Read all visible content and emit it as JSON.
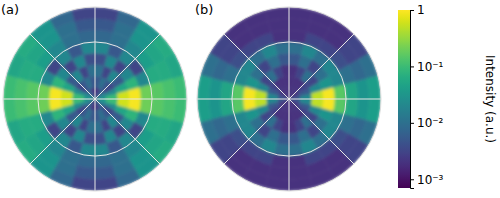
{
  "chart_data": {
    "type": "polar_heatmap",
    "log": true,
    "grid": true,
    "colorbar": {
      "label": "Intensity (a.u.)",
      "range": [
        0.0007,
        1
      ],
      "ticks": [
        {
          "value": 0.001,
          "label": "10⁻³"
        },
        {
          "value": 0.01,
          "label": "10⁻²"
        },
        {
          "value": 0.1,
          "label": "10⁻¹"
        },
        1
      ]
    },
    "panels": [
      {
        "title": "(a)",
        "r_edges": [
          0,
          0.125,
          0.25,
          0.375,
          0.5,
          0.625,
          0.75,
          0.875,
          1
        ],
        "theta_edges": [
          0,
          15,
          30,
          45,
          60,
          75,
          90,
          105,
          120,
          135,
          150,
          165,
          180,
          195,
          210,
          225,
          240,
          255,
          270,
          285,
          300,
          315,
          330,
          345,
          360
        ],
        "cells": [
          [
            0.03,
            0.02,
            0.01,
            0.005,
            0.003,
            0.002,
            0.002,
            0.003,
            0.005,
            0.01,
            0.02,
            0.03,
            0.03,
            0.02,
            0.01,
            0.005,
            0.003,
            0.002,
            0.002,
            0.003,
            0.005,
            0.01,
            0.02,
            0.03
          ],
          [
            0.1,
            0.02,
            0.003,
            0.005,
            0.01,
            0.005,
            0.005,
            0.01,
            0.005,
            0.003,
            0.02,
            0.1,
            0.1,
            0.02,
            0.003,
            0.005,
            0.01,
            0.005,
            0.005,
            0.01,
            0.005,
            0.003,
            0.02,
            0.1
          ],
          [
            0.6,
            0.05,
            0.005,
            0.02,
            0.003,
            0.01,
            0.01,
            0.003,
            0.02,
            0.005,
            0.05,
            0.6,
            0.6,
            0.05,
            0.005,
            0.02,
            0.003,
            0.01,
            0.01,
            0.003,
            0.02,
            0.005,
            0.05,
            0.6
          ],
          [
            0.9,
            0.08,
            0.02,
            0.003,
            0.02,
            0.004,
            0.004,
            0.02,
            0.003,
            0.02,
            0.08,
            0.9,
            0.9,
            0.08,
            0.02,
            0.003,
            0.02,
            0.004,
            0.004,
            0.02,
            0.003,
            0.02,
            0.08,
            0.9
          ],
          [
            0.2,
            0.02,
            0.003,
            0.02,
            0.005,
            0.02,
            0.02,
            0.005,
            0.02,
            0.003,
            0.02,
            0.2,
            0.2,
            0.02,
            0.003,
            0.02,
            0.005,
            0.02,
            0.02,
            0.005,
            0.02,
            0.003,
            0.02,
            0.2
          ],
          [
            0.15,
            0.06,
            0.04,
            0.02,
            0.01,
            0.008,
            0.008,
            0.01,
            0.02,
            0.04,
            0.06,
            0.15,
            0.15,
            0.06,
            0.04,
            0.02,
            0.01,
            0.008,
            0.008,
            0.01,
            0.02,
            0.04,
            0.06,
            0.15
          ],
          [
            0.12,
            0.06,
            0.05,
            0.03,
            0.01,
            0.005,
            0.005,
            0.01,
            0.03,
            0.05,
            0.06,
            0.12,
            0.12,
            0.06,
            0.05,
            0.03,
            0.01,
            0.005,
            0.005,
            0.01,
            0.03,
            0.05,
            0.06,
            0.12
          ],
          [
            0.1,
            0.05,
            0.06,
            0.03,
            0.008,
            0.003,
            0.003,
            0.008,
            0.03,
            0.06,
            0.05,
            0.1,
            0.1,
            0.05,
            0.06,
            0.03,
            0.008,
            0.003,
            0.003,
            0.008,
            0.03,
            0.06,
            0.05,
            0.1
          ]
        ]
      },
      {
        "title": "(b)",
        "r_edges": [
          0,
          0.125,
          0.25,
          0.375,
          0.5,
          0.625,
          0.75,
          0.875,
          1
        ],
        "theta_edges": [
          0,
          15,
          30,
          45,
          60,
          75,
          90,
          105,
          120,
          135,
          150,
          165,
          180,
          195,
          210,
          225,
          240,
          255,
          270,
          285,
          300,
          315,
          330,
          345,
          360
        ],
        "cells": [
          [
            0.005,
            0.003,
            0.002,
            0.002,
            0.002,
            0.002,
            0.002,
            0.002,
            0.002,
            0.002,
            0.003,
            0.005,
            0.005,
            0.003,
            0.002,
            0.002,
            0.002,
            0.002,
            0.002,
            0.002,
            0.002,
            0.002,
            0.003,
            0.005
          ],
          [
            0.02,
            0.005,
            0.003,
            0.002,
            0.002,
            0.002,
            0.002,
            0.002,
            0.002,
            0.003,
            0.005,
            0.02,
            0.02,
            0.005,
            0.003,
            0.002,
            0.002,
            0.002,
            0.002,
            0.002,
            0.002,
            0.003,
            0.005,
            0.02
          ],
          [
            0.5,
            0.02,
            0.003,
            0.01,
            0.003,
            0.002,
            0.002,
            0.003,
            0.01,
            0.003,
            0.02,
            0.5,
            0.5,
            0.02,
            0.003,
            0.01,
            0.003,
            0.002,
            0.002,
            0.003,
            0.01,
            0.003,
            0.02,
            0.5
          ],
          [
            0.9,
            0.03,
            0.01,
            0.003,
            0.01,
            0.005,
            0.005,
            0.01,
            0.003,
            0.01,
            0.03,
            0.9,
            0.9,
            0.03,
            0.01,
            0.003,
            0.01,
            0.005,
            0.005,
            0.01,
            0.003,
            0.01,
            0.03,
            0.9
          ],
          [
            0.15,
            0.02,
            0.02,
            0.01,
            0.02,
            0.01,
            0.01,
            0.02,
            0.01,
            0.02,
            0.02,
            0.15,
            0.15,
            0.02,
            0.02,
            0.01,
            0.02,
            0.01,
            0.01,
            0.02,
            0.01,
            0.02,
            0.02,
            0.15
          ],
          [
            0.05,
            0.01,
            0.004,
            0.003,
            0.003,
            0.002,
            0.002,
            0.003,
            0.003,
            0.004,
            0.01,
            0.05,
            0.05,
            0.01,
            0.004,
            0.003,
            0.003,
            0.002,
            0.002,
            0.003,
            0.003,
            0.004,
            0.01,
            0.05
          ],
          [
            0.03,
            0.008,
            0.003,
            0.002,
            0.002,
            0.002,
            0.002,
            0.002,
            0.002,
            0.003,
            0.008,
            0.03,
            0.03,
            0.008,
            0.003,
            0.002,
            0.002,
            0.002,
            0.002,
            0.002,
            0.002,
            0.003,
            0.008,
            0.03
          ],
          [
            0.04,
            0.01,
            0.003,
            0.002,
            0.002,
            0.002,
            0.002,
            0.002,
            0.002,
            0.003,
            0.01,
            0.04,
            0.04,
            0.01,
            0.003,
            0.002,
            0.002,
            0.002,
            0.002,
            0.002,
            0.002,
            0.003,
            0.01,
            0.04
          ]
        ]
      }
    ]
  }
}
